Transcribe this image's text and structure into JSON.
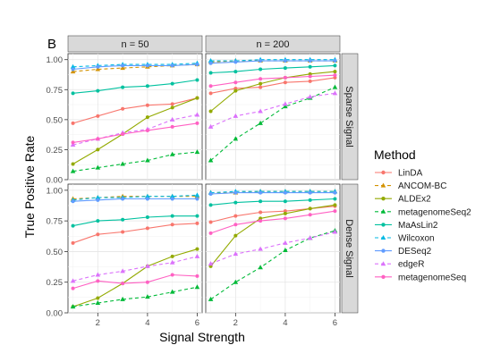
{
  "panel_tag": "B",
  "xlabel": "Signal Strength",
  "ylabel": "True Positive Rate",
  "legend_title": "Method",
  "col_strips": [
    "n = 50",
    "n = 200"
  ],
  "row_strips": [
    "Sparse Signal",
    "Dense Signal"
  ],
  "x_ticks": [
    "2",
    "4",
    "6"
  ],
  "y_ticks": [
    "0.00",
    "0.25",
    "0.50",
    "0.75",
    "1.00"
  ],
  "chart_data": {
    "type": "line",
    "facets": "columns: sample size (n = 50, n = 200); rows: signal type (Sparse Signal, Dense Signal)",
    "x": [
      1,
      2,
      3,
      4,
      5,
      6
    ],
    "xlabel": "Signal Strength",
    "ylabel": "True Positive Rate",
    "xlim": [
      0.8,
      6.2
    ],
    "ylim": [
      0,
      1.05
    ],
    "grid": true,
    "legend_position": "right",
    "series": [
      {
        "name": "LinDA",
        "color": "#F8766D",
        "marker": "circle",
        "dashed": false,
        "values": {
          "sparse_n50": [
            0.47,
            0.53,
            0.59,
            0.62,
            0.63,
            0.68
          ],
          "sparse_n200": [
            0.72,
            0.76,
            0.77,
            0.81,
            0.82,
            0.85
          ],
          "dense_n50": [
            0.57,
            0.64,
            0.66,
            0.69,
            0.72,
            0.73
          ],
          "dense_n200": [
            0.74,
            0.79,
            0.82,
            0.83,
            0.85,
            0.87
          ]
        }
      },
      {
        "name": "ANCOM-BC",
        "color": "#D39200",
        "marker": "triangle",
        "dashed": true,
        "values": {
          "sparse_n50": [
            0.9,
            0.92,
            0.93,
            0.94,
            0.95,
            0.96
          ],
          "sparse_n200": [
            0.98,
            0.99,
            0.99,
            0.99,
            0.99,
            0.99
          ],
          "dense_n50": [
            0.93,
            0.94,
            0.95,
            0.95,
            0.95,
            0.95
          ],
          "dense_n200": [
            0.98,
            0.98,
            0.99,
            0.99,
            0.99,
            0.99
          ]
        }
      },
      {
        "name": "ALDEx2",
        "color": "#93AA00",
        "marker": "circle",
        "dashed": false,
        "values": {
          "sparse_n50": [
            0.13,
            0.25,
            0.38,
            0.52,
            0.6,
            0.68
          ],
          "sparse_n200": [
            0.57,
            0.74,
            0.8,
            0.85,
            0.88,
            0.9
          ],
          "dense_n50": [
            0.05,
            0.12,
            0.24,
            0.38,
            0.46,
            0.52
          ],
          "dense_n200": [
            0.38,
            0.63,
            0.77,
            0.81,
            0.85,
            0.88
          ]
        }
      },
      {
        "name": "metagenomeSeq2",
        "color": "#00BA38",
        "marker": "triangle",
        "dashed": true,
        "values": {
          "sparse_n50": [
            0.07,
            0.1,
            0.13,
            0.16,
            0.21,
            0.23
          ],
          "sparse_n200": [
            0.16,
            0.34,
            0.47,
            0.61,
            0.68,
            0.77
          ],
          "dense_n50": [
            0.05,
            0.08,
            0.11,
            0.13,
            0.17,
            0.21
          ],
          "dense_n200": [
            0.11,
            0.25,
            0.37,
            0.51,
            0.61,
            0.67
          ]
        }
      },
      {
        "name": "MaAsLin2",
        "color": "#00C19F",
        "marker": "circle",
        "dashed": false,
        "values": {
          "sparse_n50": [
            0.72,
            0.74,
            0.77,
            0.78,
            0.8,
            0.83
          ],
          "sparse_n200": [
            0.89,
            0.9,
            0.92,
            0.93,
            0.94,
            0.95
          ],
          "dense_n50": [
            0.71,
            0.75,
            0.76,
            0.78,
            0.79,
            0.79
          ],
          "dense_n200": [
            0.88,
            0.9,
            0.91,
            0.91,
            0.92,
            0.93
          ]
        }
      },
      {
        "name": "Wilcoxon",
        "color": "#00B9E3",
        "marker": "triangle",
        "dashed": true,
        "values": {
          "sparse_n50": [
            0.94,
            0.95,
            0.96,
            0.96,
            0.96,
            0.97
          ],
          "sparse_n200": [
            0.99,
            0.99,
            1.0,
            1.0,
            1.0,
            1.0
          ],
          "dense_n50": [
            0.92,
            0.94,
            0.94,
            0.95,
            0.95,
            0.96
          ],
          "dense_n200": [
            0.98,
            0.99,
            0.99,
            0.99,
            0.99,
            0.99
          ]
        }
      },
      {
        "name": "DESeq2",
        "color": "#619CFF",
        "marker": "circle",
        "dashed": false,
        "values": {
          "sparse_n50": [
            0.92,
            0.94,
            0.95,
            0.95,
            0.95,
            0.96
          ],
          "sparse_n200": [
            0.97,
            0.98,
            0.99,
            0.99,
            0.99,
            0.99
          ],
          "dense_n50": [
            0.91,
            0.92,
            0.93,
            0.93,
            0.93,
            0.93
          ],
          "dense_n200": [
            0.97,
            0.98,
            0.98,
            0.98,
            0.98,
            0.98
          ]
        }
      },
      {
        "name": "edgeR",
        "color": "#DB72FB",
        "marker": "triangle",
        "dashed": true,
        "values": {
          "sparse_n50": [
            0.29,
            0.34,
            0.39,
            0.42,
            0.5,
            0.54
          ],
          "sparse_n200": [
            0.44,
            0.53,
            0.57,
            0.63,
            0.69,
            0.72
          ],
          "dense_n50": [
            0.26,
            0.31,
            0.34,
            0.38,
            0.41,
            0.46
          ],
          "dense_n200": [
            0.4,
            0.48,
            0.52,
            0.57,
            0.61,
            0.66
          ]
        }
      },
      {
        "name": "metagenomeSeq",
        "color": "#FF61C3",
        "marker": "circle",
        "dashed": false,
        "values": {
          "sparse_n50": [
            0.31,
            0.34,
            0.38,
            0.41,
            0.44,
            0.47
          ],
          "sparse_n200": [
            0.78,
            0.81,
            0.84,
            0.85,
            0.86,
            0.87
          ],
          "dense_n50": [
            0.2,
            0.26,
            0.24,
            0.25,
            0.31,
            0.3
          ],
          "dense_n200": [
            0.65,
            0.72,
            0.75,
            0.77,
            0.8,
            0.83
          ]
        }
      }
    ]
  }
}
